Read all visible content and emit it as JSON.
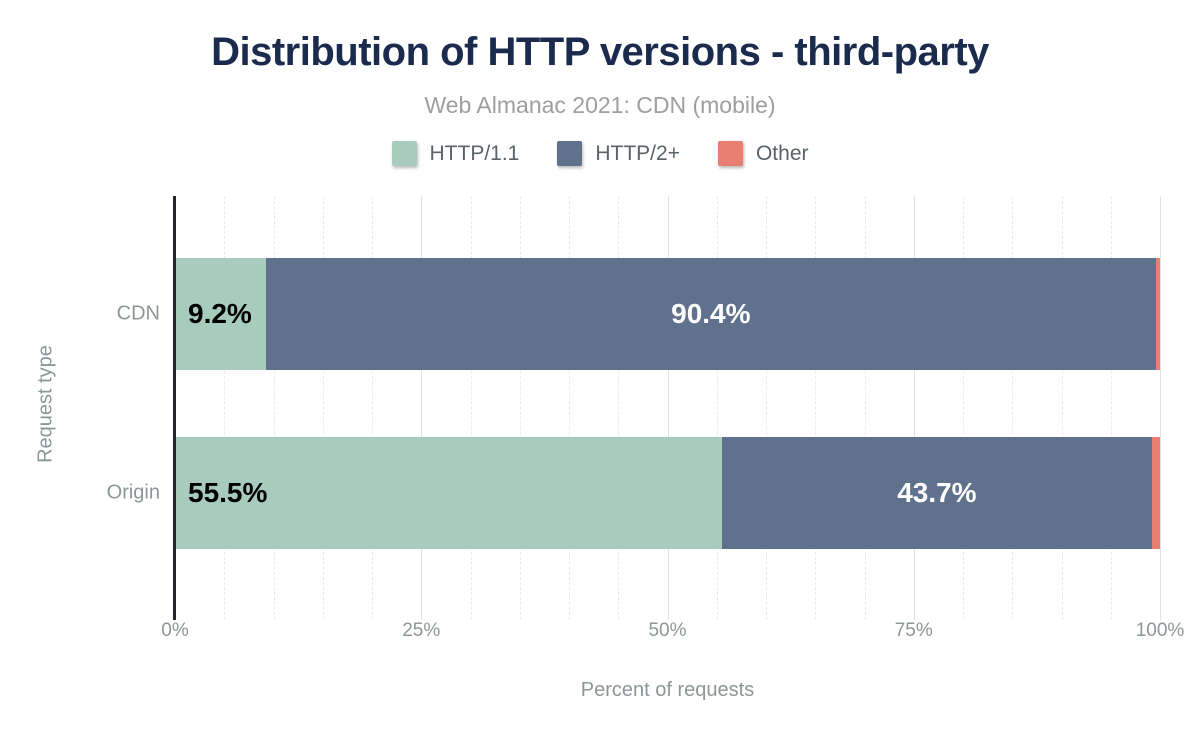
{
  "chart_data": {
    "type": "bar",
    "orientation": "horizontal",
    "stacked": true,
    "title": "Distribution of HTTP versions - third-party",
    "subtitle": "Web Almanac 2021: CDN (mobile)",
    "xlabel": "Percent of requests",
    "ylabel": "Request type",
    "categories": [
      "CDN",
      "Origin"
    ],
    "series": [
      {
        "name": "HTTP/1.1",
        "color": "#a7cbbc",
        "label_color": "#000000",
        "label_align": "start",
        "values": [
          9.2,
          55.5
        ]
      },
      {
        "name": "HTTP/2+",
        "color": "#5f718c",
        "label_color": "#ffffff",
        "label_align": "center",
        "values": [
          90.4,
          43.7
        ]
      },
      {
        "name": "Other",
        "color": "#e97e72",
        "label_color": "#ffffff",
        "label_align": "center",
        "values": [
          0.4,
          0.8
        ]
      }
    ],
    "visible_value_labels": [
      "9.2%",
      "90.4%",
      "55.5%",
      "43.7%"
    ],
    "x_ticks": [
      "0%",
      "25%",
      "50%",
      "75%",
      "100%"
    ],
    "x_tick_values": [
      0,
      25,
      50,
      75,
      100
    ],
    "xlim": [
      0,
      100
    ],
    "grid": {
      "minor_step": 5,
      "major_values": [
        25,
        50,
        75,
        100
      ]
    },
    "value_label_min": 5,
    "legend_position": "top"
  },
  "colors": {
    "title": "#1b2b4d",
    "subtitle": "#9e9e9e",
    "legend_text": "#5a6468",
    "axis_text": "#8d9697",
    "axis_line": "#24262b",
    "grid_major": "#e2e2e2",
    "grid_minor": "#eaeaea",
    "background": "#ffffff"
  }
}
